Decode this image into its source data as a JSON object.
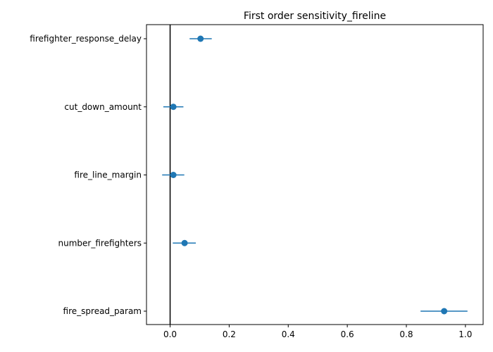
{
  "chart_data": {
    "type": "scatter",
    "title": "First order sensitivity_fireline",
    "xlabel": "",
    "ylabel": "",
    "xlim": [
      -0.08,
      1.06
    ],
    "xticks": [
      0.0,
      0.2,
      0.4,
      0.6,
      0.8,
      1.0
    ],
    "xtick_labels": [
      "0.0",
      "0.2",
      "0.4",
      "0.6",
      "0.8",
      "1.0"
    ],
    "categories": [
      "firefighter_response_delay",
      "cut_down_amount",
      "fire_line_margin",
      "number_firefighters",
      "fire_spread_param"
    ],
    "values": [
      0.103,
      0.011,
      0.011,
      0.049,
      0.928
    ],
    "error_low": [
      0.066,
      -0.023,
      -0.027,
      0.009,
      0.848
    ],
    "error_high": [
      0.141,
      0.045,
      0.048,
      0.087,
      1.007
    ],
    "reference_line_x": 0,
    "grid": false,
    "colors": {
      "marker": "#1f77b4",
      "reference_line": "#000000",
      "axes": "#000000"
    }
  }
}
